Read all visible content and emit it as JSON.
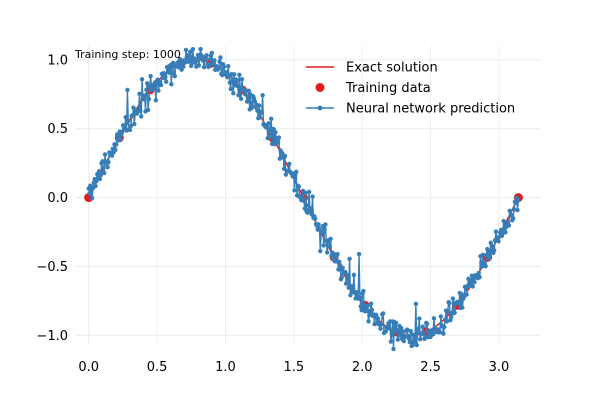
{
  "chart_data": {
    "type": "line",
    "title": "",
    "xlabel": "",
    "ylabel": "",
    "xlim": [
      -0.1,
      3.3
    ],
    "ylim": [
      -1.07,
      1.1
    ],
    "grid": true,
    "x_ticks": [
      0.0,
      0.5,
      1.0,
      1.5,
      2.0,
      2.5,
      3.0
    ],
    "x_tick_labels": [
      "0.0",
      "0.5",
      "1.0",
      "1.5",
      "2.0",
      "2.5",
      "3.0"
    ],
    "y_ticks": [
      -1.0,
      -0.5,
      0.0,
      0.5,
      1.0
    ],
    "y_tick_labels": [
      "−1.0",
      "−0.5",
      "0.0",
      "0.5",
      "1.0"
    ],
    "annotation": "Training step: 1000",
    "legend": {
      "placement": "top-right",
      "entries": [
        {
          "name": "Exact solution",
          "color": "#e41a1c",
          "marker": "line"
        },
        {
          "name": "Training data",
          "color": "#e41a1c",
          "marker": "dot"
        },
        {
          "name": "Neural network prediction",
          "color": "#377eb8",
          "marker": "line-dot"
        }
      ]
    },
    "series": [
      {
        "name": "Exact solution",
        "function": "sin(2x)",
        "x_range": [
          0.0,
          3.14159
        ],
        "color": "#e41a1c"
      },
      {
        "name": "Training data",
        "color": "#e41a1c",
        "x": [
          0.0,
          0.224,
          0.449,
          0.673,
          0.898,
          1.122,
          1.346,
          1.571,
          1.795,
          2.02,
          2.244,
          2.468,
          2.693,
          2.917,
          3.142
        ],
        "y": [
          0.0,
          0.434,
          0.782,
          0.975,
          0.975,
          0.782,
          0.434,
          0.0,
          -0.434,
          -0.782,
          -0.975,
          -0.975,
          -0.782,
          -0.434,
          0.0
        ]
      },
      {
        "name": "Neural network prediction",
        "color": "#377eb8",
        "function": "sin(2x) + noise",
        "x_range": [
          0.0,
          3.14159
        ],
        "points": 500,
        "noise_std": 0.045,
        "noise_seed": 7
      }
    ]
  }
}
